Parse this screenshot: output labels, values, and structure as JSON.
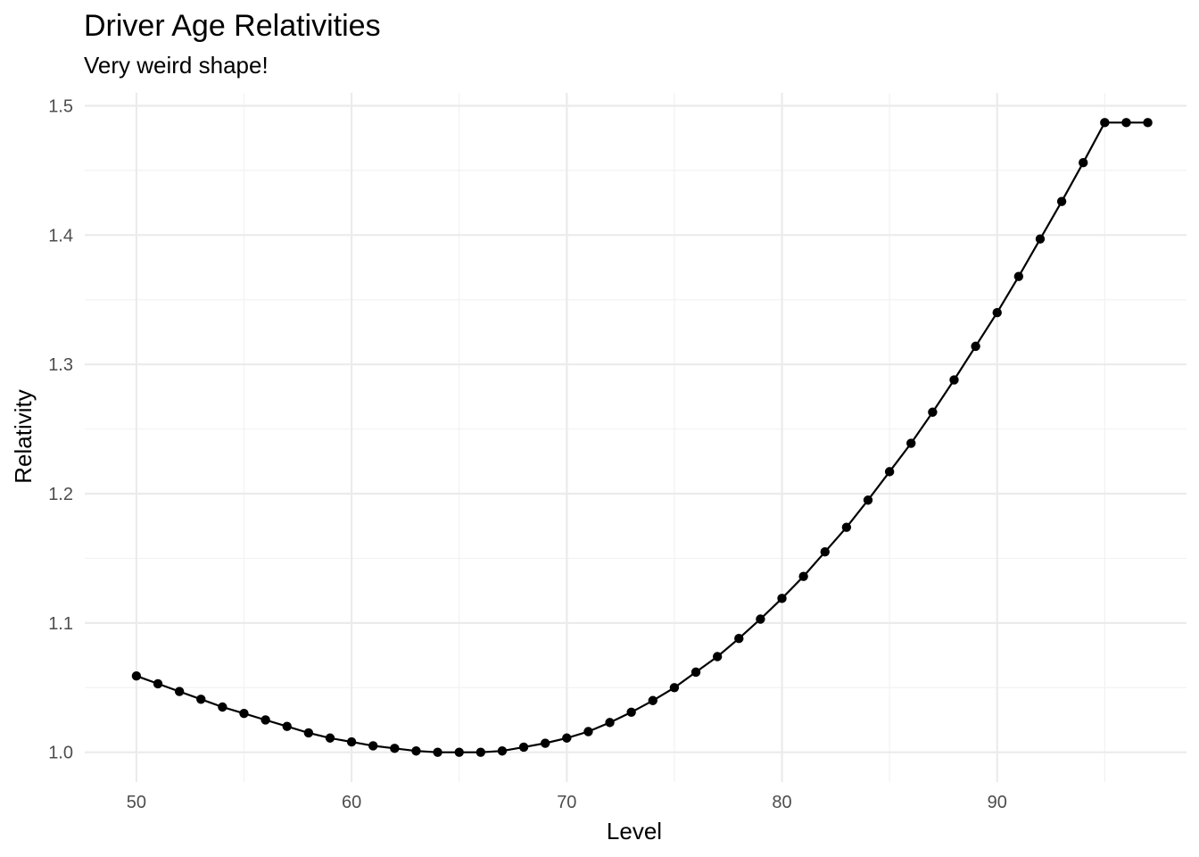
{
  "chart_data": {
    "type": "line",
    "title": "Driver Age Relativities",
    "subtitle": "Very weird shape!",
    "xlabel": "Level",
    "ylabel": "Relativity",
    "xlim": [
      47.6,
      98.8
    ],
    "ylim": [
      0.977,
      1.51
    ],
    "x_ticks": [
      50,
      60,
      70,
      80,
      90
    ],
    "x_minor_ticks": [
      55,
      65,
      75,
      85,
      95
    ],
    "y_ticks": [
      1.0,
      1.1,
      1.2,
      1.3,
      1.4,
      1.5
    ],
    "y_minor_ticks": [
      1.05,
      1.15,
      1.25,
      1.35,
      1.45
    ],
    "x_tick_labels": [
      "50",
      "60",
      "70",
      "80",
      "90"
    ],
    "y_tick_labels": [
      "1.0",
      "1.1",
      "1.2",
      "1.3",
      "1.4",
      "1.5"
    ],
    "grid": true,
    "legend": "none",
    "line_color": "#000000",
    "x": [
      50,
      51,
      52,
      53,
      54,
      55,
      56,
      57,
      58,
      59,
      60,
      61,
      62,
      63,
      64,
      65,
      66,
      67,
      68,
      69,
      70,
      71,
      72,
      73,
      74,
      75,
      76,
      77,
      78,
      79,
      80,
      81,
      82,
      83,
      84,
      85,
      86,
      87,
      88,
      89,
      90,
      91,
      92,
      93,
      94,
      95,
      96,
      97
    ],
    "values": [
      1.059,
      1.053,
      1.047,
      1.041,
      1.035,
      1.03,
      1.025,
      1.02,
      1.015,
      1.011,
      1.008,
      1.005,
      1.003,
      1.001,
      1.0,
      1.0,
      1.0,
      1.001,
      1.004,
      1.007,
      1.011,
      1.016,
      1.023,
      1.031,
      1.04,
      1.05,
      1.062,
      1.074,
      1.088,
      1.103,
      1.119,
      1.136,
      1.155,
      1.174,
      1.195,
      1.217,
      1.239,
      1.263,
      1.288,
      1.314,
      1.34,
      1.368,
      1.397,
      1.426,
      1.456,
      1.487,
      1.487,
      1.487
    ]
  }
}
